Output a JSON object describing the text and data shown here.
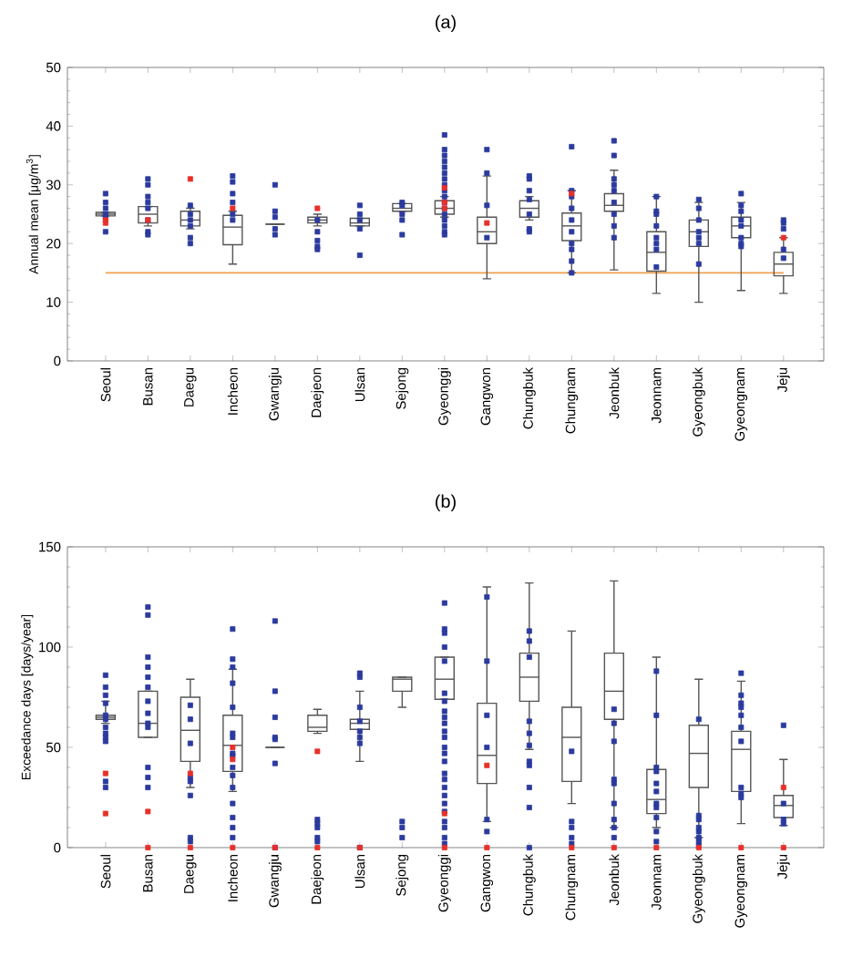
{
  "chart_data": [
    {
      "type": "box",
      "title": "(a)",
      "ylabel": "Annual mean [μg/m$^{3}$]",
      "categories": [
        "Seoul",
        "Busan",
        "Daegu",
        "Incheon",
        "Gwangju",
        "Daejeon",
        "Ulsan",
        "Sejong",
        "Gyeonggi",
        "Gangwon",
        "Chungbuk",
        "Chungnam",
        "Jeonbuk",
        "Jeonnam",
        "Gyeongbuk",
        "Gyeongnam",
        "Jeju"
      ],
      "ylim": [
        0,
        50
      ],
      "yticks": [
        0,
        10,
        20,
        30,
        40,
        50
      ],
      "ref_lines": [
        {
          "axis": "y",
          "value": 15,
          "color": "#f0a050"
        }
      ],
      "series": [
        {
          "color": "#555555",
          "boxes": [
            {
              "low": 24.7,
              "q1": 24.7,
              "median": 25,
              "q3": 25.3,
              "high": 25.3
            },
            {
              "low": 23,
              "q1": 23.5,
              "median": 25,
              "q3": 26.3,
              "high": 26.3
            },
            {
              "low": 22.5,
              "q1": 23,
              "median": 24,
              "q3": 25.5,
              "high": 26
            },
            {
              "low": 16.5,
              "q1": 19.8,
              "median": 22.8,
              "q3": 24.8,
              "high": 25.5
            },
            {
              "low": 23.3,
              "q1": 23.3,
              "median": 23.3,
              "q3": 23.3,
              "high": 23.3
            },
            {
              "low": 23,
              "q1": 23.5,
              "median": 24,
              "q3": 24.5,
              "high": 25
            },
            {
              "low": 23,
              "q1": 23,
              "median": 23.5,
              "q3": 24.3,
              "high": 24.3
            },
            {
              "low": 25.5,
              "q1": 25.5,
              "median": 26,
              "q3": 26.8,
              "high": 26.8
            },
            {
              "low": 24.5,
              "q1": 25,
              "median": 26,
              "q3": 27.3,
              "high": 28
            },
            {
              "low": 14,
              "q1": 20,
              "median": 22,
              "q3": 24.5,
              "high": 31.5
            },
            {
              "low": 24,
              "q1": 24.5,
              "median": 26,
              "q3": 27.3,
              "high": 28
            },
            {
              "low": 15,
              "q1": 20.5,
              "median": 23,
              "q3": 25.2,
              "high": 29
            },
            {
              "low": 15.5,
              "q1": 25.5,
              "median": 26.5,
              "q3": 28.5,
              "high": 32.5
            },
            {
              "low": 11.5,
              "q1": 15.3,
              "median": 18.5,
              "q3": 22,
              "high": 28
            },
            {
              "low": 10,
              "q1": 19.5,
              "median": 22,
              "q3": 24,
              "high": 27
            },
            {
              "low": 12,
              "q1": 21,
              "median": 23,
              "q3": 24.5,
              "high": 27
            },
            {
              "low": 11.5,
              "q1": 14.5,
              "median": 16.5,
              "q3": 18.5,
              "high": 21
            }
          ]
        },
        {
          "type": "scatter",
          "color": "#2b3a9e",
          "marker": "square",
          "x": [
            "Seoul",
            "Seoul",
            "Seoul",
            "Seoul",
            "Seoul",
            "Seoul",
            "Busan",
            "Busan",
            "Busan",
            "Busan",
            "Busan",
            "Busan",
            "Busan",
            "Busan",
            "Daegu",
            "Daegu",
            "Daegu",
            "Daegu",
            "Daegu",
            "Daegu",
            "Incheon",
            "Incheon",
            "Incheon",
            "Incheon",
            "Incheon",
            "Incheon",
            "Gwangju",
            "Gwangju",
            "Gwangju",
            "Gwangju",
            "Gwangju",
            "Daejeon",
            "Daejeon",
            "Daejeon",
            "Daejeon",
            "Daejeon",
            "Ulsan",
            "Ulsan",
            "Ulsan",
            "Ulsan",
            "Ulsan",
            "Sejong",
            "Sejong",
            "Sejong",
            "Sejong",
            "Sejong",
            "Gyeonggi",
            "Gyeonggi",
            "Gyeonggi",
            "Gyeonggi",
            "Gyeonggi",
            "Gyeonggi",
            "Gyeonggi",
            "Gyeonggi",
            "Gyeonggi",
            "Gyeonggi",
            "Gyeonggi",
            "Gyeonggi",
            "Gyeonggi",
            "Gyeonggi",
            "Gyeonggi",
            "Gyeonggi",
            "Gyeonggi",
            "Gangwon",
            "Gangwon",
            "Gangwon",
            "Gangwon",
            "Chungbuk",
            "Chungbuk",
            "Chungbuk",
            "Chungbuk",
            "Chungbuk",
            "Chungbuk",
            "Chungbuk",
            "Chungnam",
            "Chungnam",
            "Chungnam",
            "Chungnam",
            "Chungnam",
            "Chungnam",
            "Chungnam",
            "Chungnam",
            "Chungnam",
            "Chungnam",
            "Jeonbuk",
            "Jeonbuk",
            "Jeonbuk",
            "Jeonbuk",
            "Jeonbuk",
            "Jeonbuk",
            "Jeonbuk",
            "Jeonbuk",
            "Jeonbuk",
            "Jeonnam",
            "Jeonnam",
            "Jeonnam",
            "Jeonnam",
            "Jeonnam",
            "Jeonnam",
            "Jeonnam",
            "Jeonnam",
            "Gyeongbuk",
            "Gyeongbuk",
            "Gyeongbuk",
            "Gyeongbuk",
            "Gyeongbuk",
            "Gyeongbuk",
            "Gyeongbuk",
            "Gyeongnam",
            "Gyeongnam",
            "Gyeongnam",
            "Gyeongnam",
            "Gyeongnam",
            "Gyeongnam",
            "Gyeongnam",
            "Gyeongnam",
            "Jeju",
            "Jeju",
            "Jeju",
            "Jeju",
            "Jeju"
          ],
          "values": [
            28.5,
            27,
            26,
            25,
            24.5,
            22,
            31,
            30,
            28,
            27,
            26,
            24,
            22,
            21.5,
            26.5,
            25,
            24,
            23,
            21,
            20,
            31.5,
            30.5,
            28.5,
            27,
            25,
            24,
            30,
            25.5,
            24.5,
            22.5,
            21.5,
            24,
            22,
            20.5,
            19.5,
            19,
            26.5,
            25,
            24,
            22.5,
            18,
            27,
            26.5,
            25,
            24,
            21.5,
            38.5,
            36,
            35,
            34,
            33,
            32,
            31,
            30,
            29,
            28,
            27,
            26,
            25,
            24,
            23,
            22,
            21.5,
            36,
            32,
            26.5,
            21,
            31.5,
            31,
            29,
            27.5,
            25,
            22.5,
            22,
            36.5,
            29,
            28,
            26,
            24,
            22,
            20,
            19,
            17,
            15,
            37.5,
            35,
            31,
            30,
            29,
            27,
            25,
            23,
            21,
            28,
            25.5,
            25,
            23,
            21,
            20,
            19,
            16,
            27.5,
            26,
            24,
            22,
            21,
            20,
            16.5,
            28.5,
            26.5,
            25.5,
            24,
            23,
            21,
            20,
            19.5,
            24,
            23.5,
            22.5,
            19,
            17.5
          ]
        },
        {
          "type": "scatter",
          "color": "#e8302a",
          "marker": "square",
          "x": [
            "Seoul",
            "Seoul",
            "Busan",
            "Daegu",
            "Incheon",
            "Daejeon",
            "Gyeonggi",
            "Gyeonggi",
            "Gyeonggi",
            "Gangwon",
            "Chungnam",
            "Jeju"
          ],
          "values": [
            24,
            23.5,
            24,
            31,
            26,
            26,
            29.5,
            27,
            26,
            23.5,
            28.5,
            21
          ]
        }
      ]
    },
    {
      "type": "box",
      "title": "(b)",
      "ylabel": "Exceedance days [days/year]",
      "categories": [
        "Seoul",
        "Busan",
        "Daegu",
        "Incheon",
        "Gwangju",
        "Daejeon",
        "Ulsan",
        "Sejong",
        "Gyeonggi",
        "Gangwon",
        "Chungbuk",
        "Chungnam",
        "Jeonbuk",
        "Jeonnam",
        "Gyeongbuk",
        "Gyeongnam",
        "Jeju"
      ],
      "ylim": [
        0,
        150
      ],
      "yticks": [
        0,
        50,
        100,
        150
      ],
      "series": [
        {
          "color": "#555555",
          "boxes": [
            {
              "low": 62,
              "q1": 64,
              "median": 65,
              "q3": 66,
              "high": 73
            },
            {
              "low": 55,
              "q1": 55,
              "median": 62,
              "q3": 78,
              "high": 78
            },
            {
              "low": 30,
              "q1": 43,
              "median": 58.5,
              "q3": 75,
              "high": 84
            },
            {
              "low": 28,
              "q1": 38,
              "median": 51,
              "q3": 66,
              "high": 89
            },
            {
              "low": 50,
              "q1": 50,
              "median": 50,
              "q3": 50,
              "high": 50
            },
            {
              "low": 57,
              "q1": 58,
              "median": 60,
              "q3": 66,
              "high": 69
            },
            {
              "low": 43,
              "q1": 59,
              "median": 62,
              "q3": 64,
              "high": 78
            },
            {
              "low": 70,
              "q1": 78,
              "median": 84,
              "q3": 85,
              "high": 85
            },
            {
              "low": 74,
              "q1": 74,
              "median": 84,
              "q3": 95,
              "high": 95
            },
            {
              "low": 13,
              "q1": 32,
              "median": 46,
              "q3": 72,
              "high": 130
            },
            {
              "low": 49,
              "q1": 73,
              "median": 85,
              "q3": 97,
              "high": 132
            },
            {
              "low": 22,
              "q1": 33,
              "median": 55,
              "q3": 70,
              "high": 108
            },
            {
              "low": 10,
              "q1": 64,
              "median": 78,
              "q3": 97,
              "high": 133
            },
            {
              "low": 10,
              "q1": 17,
              "median": 24,
              "q3": 39,
              "high": 95
            },
            {
              "low": 5,
              "q1": 30,
              "median": 47,
              "q3": 61,
              "high": 84
            },
            {
              "low": 12,
              "q1": 28,
              "median": 49,
              "q3": 58,
              "high": 83
            },
            {
              "low": 11,
              "q1": 15,
              "median": 21,
              "q3": 26,
              "high": 44
            }
          ]
        },
        {
          "type": "scatter",
          "color": "#2b3a9e",
          "marker": "square",
          "x": [
            "Seoul",
            "Seoul",
            "Seoul",
            "Seoul",
            "Seoul",
            "Seoul",
            "Seoul",
            "Seoul",
            "Seoul",
            "Seoul",
            "Seoul",
            "Seoul",
            "Busan",
            "Busan",
            "Busan",
            "Busan",
            "Busan",
            "Busan",
            "Busan",
            "Busan",
            "Busan",
            "Busan",
            "Busan",
            "Busan",
            "Busan",
            "Daegu",
            "Daegu",
            "Daegu",
            "Daegu",
            "Daegu",
            "Daegu",
            "Daegu",
            "Daegu",
            "Incheon",
            "Incheon",
            "Incheon",
            "Incheon",
            "Incheon",
            "Incheon",
            "Incheon",
            "Incheon",
            "Incheon",
            "Incheon",
            "Incheon",
            "Incheon",
            "Incheon",
            "Incheon",
            "Incheon",
            "Incheon",
            "Gwangju",
            "Gwangju",
            "Gwangju",
            "Gwangju",
            "Gwangju",
            "Gwangju",
            "Gwangju",
            "Daejeon",
            "Daejeon",
            "Daejeon",
            "Daejeon",
            "Daejeon",
            "Ulsan",
            "Ulsan",
            "Ulsan",
            "Ulsan",
            "Ulsan",
            "Ulsan",
            "Ulsan",
            "Ulsan",
            "Sejong",
            "Sejong",
            "Sejong",
            "Gyeonggi",
            "Gyeonggi",
            "Gyeonggi",
            "Gyeonggi",
            "Gyeonggi",
            "Gyeonggi",
            "Gyeonggi",
            "Gyeonggi",
            "Gyeonggi",
            "Gyeonggi",
            "Gyeonggi",
            "Gyeonggi",
            "Gyeonggi",
            "Gyeonggi",
            "Gyeonggi",
            "Gyeonggi",
            "Gyeonggi",
            "Gyeonggi",
            "Gyeonggi",
            "Gyeonggi",
            "Gyeonggi",
            "Gyeonggi",
            "Gyeonggi",
            "Gyeonggi",
            "Gyeonggi",
            "Gangwon",
            "Gangwon",
            "Gangwon",
            "Gangwon",
            "Gangwon",
            "Gangwon",
            "Chungbuk",
            "Chungbuk",
            "Chungbuk",
            "Chungbuk",
            "Chungbuk",
            "Chungbuk",
            "Chungbuk",
            "Chungbuk",
            "Chungbuk",
            "Chungbuk",
            "Chungbuk",
            "Chungnam",
            "Chungnam",
            "Chungnam",
            "Chungnam",
            "Chungnam",
            "Jeonbuk",
            "Jeonbuk",
            "Jeonbuk",
            "Jeonbuk",
            "Jeonbuk",
            "Jeonbuk",
            "Jeonbuk",
            "Jeonbuk",
            "Jeonbuk",
            "Jeonnam",
            "Jeonnam",
            "Jeonnam",
            "Jeonnam",
            "Jeonnam",
            "Jeonnam",
            "Jeonnam",
            "Jeonnam",
            "Jeonnam",
            "Jeonnam",
            "Jeonnam",
            "Gyeongbuk",
            "Gyeongbuk",
            "Gyeongbuk",
            "Gyeongbuk",
            "Gyeongbuk",
            "Gyeongbuk",
            "Gyeongbuk",
            "Gyeongbuk",
            "Gyeongnam",
            "Gyeongnam",
            "Gyeongnam",
            "Gyeongnam",
            "Gyeongnam",
            "Gyeongnam",
            "Gyeongnam",
            "Gyeongnam",
            "Gyeongnam",
            "Gyeongnam",
            "Jeju",
            "Jeju",
            "Jeju",
            "Jeju"
          ],
          "values": [
            86,
            80,
            76,
            72,
            66,
            64,
            60,
            57,
            55,
            53,
            33,
            30,
            120,
            116,
            95,
            90,
            85,
            80,
            73,
            67,
            62,
            60,
            40,
            35,
            30,
            71,
            64,
            52,
            35,
            33,
            26,
            5,
            3,
            109,
            94,
            90,
            82,
            70,
            57,
            55,
            47,
            46,
            40,
            36,
            30,
            22,
            15,
            10,
            5,
            113,
            78,
            65,
            55,
            54,
            42,
            0,
            14,
            12,
            10,
            5,
            3,
            87,
            85,
            70,
            63,
            58,
            55,
            52,
            0,
            13,
            10,
            5,
            122,
            109,
            107,
            100,
            93,
            77,
            73,
            68,
            65,
            62,
            58,
            55,
            50,
            47,
            43,
            37,
            34,
            30,
            26,
            22,
            18,
            13,
            10,
            5,
            2,
            125,
            93,
            66,
            50,
            14,
            8,
            108,
            103,
            95,
            63,
            57,
            51,
            43,
            41,
            30,
            20,
            0,
            48,
            13,
            10,
            5,
            2,
            69,
            62,
            53,
            34,
            32,
            22,
            14,
            10,
            5,
            88,
            66,
            40,
            38,
            32,
            28,
            22,
            20,
            15,
            8,
            3,
            64,
            16,
            14,
            10,
            8,
            5,
            3,
            1,
            87,
            76,
            72,
            70,
            66,
            60,
            53,
            30,
            27,
            25,
            61,
            22,
            14,
            12
          ]
        },
        {
          "type": "scatter",
          "color": "#e8302a",
          "marker": "square",
          "x": [
            "Seoul",
            "Seoul",
            "Busan",
            "Busan",
            "Daegu",
            "Daegu",
            "Incheon",
            "Incheon",
            "Incheon",
            "Gwangju",
            "Daejeon",
            "Daejeon",
            "Ulsan",
            "Gyeonggi",
            "Gyeonggi",
            "Gangwon",
            "Gangwon",
            "Chungnam",
            "Jeonbuk",
            "Jeonnam",
            "Gyeongbuk",
            "Gyeongnam",
            "Jeju",
            "Jeju"
          ],
          "values": [
            37,
            17,
            18,
            0,
            37,
            0,
            50,
            44,
            0,
            0,
            48,
            0,
            0,
            17,
            0,
            41,
            0,
            0,
            0,
            0,
            0,
            0,
            30,
            0
          ]
        }
      ]
    }
  ]
}
